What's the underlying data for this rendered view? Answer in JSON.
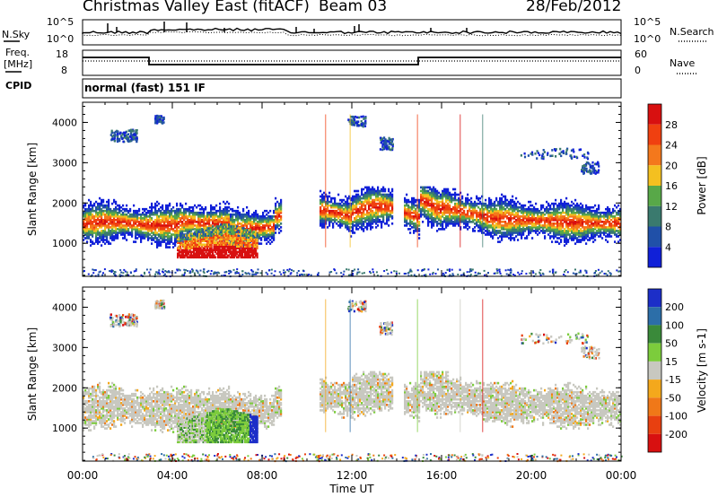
{
  "header": {
    "station": "Christmas Valley East (fitACF)",
    "beam": "Beam 03",
    "date": "28/Feb/2012"
  },
  "params": {
    "nsky_label": "N.Sky",
    "nsky_ticks": [
      "10^5",
      "10^0"
    ],
    "nsearch_label": "N.Search",
    "nsearch_ticks": [
      "10^5",
      "10^0"
    ],
    "freq_label": [
      "Freq.",
      "[MHz]"
    ],
    "freq_ticks": [
      "18",
      "8"
    ],
    "nave_label": "Nave",
    "nave_ticks": [
      "60",
      "0"
    ],
    "cpid_label": "CPID",
    "cpid_value": "normal (fast) 151 IF"
  },
  "chart_data": [
    {
      "type": "heatmap",
      "title": "",
      "xlabel": "Time UT",
      "ylabel": "Slant Range [km]",
      "x_ticks": [
        "00:00",
        "04:00",
        "08:00",
        "12:00",
        "16:00",
        "20:00",
        "00:00"
      ],
      "xlim_hours": [
        0,
        24
      ],
      "ylim_km": [
        180,
        4500
      ],
      "y_ticks": [
        1000,
        2000,
        3000,
        4000
      ],
      "colorbar": {
        "label": "Power [dB]",
        "ticks": [
          "28",
          "24",
          "20",
          "16",
          "12",
          "8",
          "4"
        ],
        "colors": [
          "#d81010",
          "#f04010",
          "#f4781c",
          "#f4c020",
          "#58a848",
          "#3a7a6e",
          "#2050a8",
          "#1020d8"
        ]
      },
      "features": [
        {
          "name": "main scatter band",
          "hours": [
            0,
            24
          ],
          "range_km": [
            1200,
            1900
          ],
          "peak_power_db": 28
        },
        {
          "name": "near-range enhancement",
          "hours": [
            4.2,
            7.5
          ],
          "range_km": [
            700,
            1500
          ],
          "peak_power_db": 28
        },
        {
          "name": "far-range patches",
          "hours": [
            19,
            23.5
          ],
          "range_km": [
            2700,
            3400
          ],
          "peak_power_db": 8
        }
      ]
    },
    {
      "type": "heatmap",
      "title": "",
      "xlabel": "Time UT",
      "ylabel": "Slant Range [km]",
      "x_ticks": [
        "00:00",
        "04:00",
        "08:00",
        "12:00",
        "16:00",
        "20:00",
        "00:00"
      ],
      "xlim_hours": [
        0,
        24
      ],
      "ylim_km": [
        180,
        4500
      ],
      "y_ticks": [
        1000,
        2000,
        3000,
        4000
      ],
      "colorbar": {
        "label": "Velocity [m s-1]",
        "ticks": [
          "200",
          "100",
          "50",
          "15",
          "-15",
          "-50",
          "-100",
          "-200"
        ],
        "colors": [
          "#1c2ec8",
          "#2c6ea8",
          "#3a8a3a",
          "#7ccc3c",
          "#c8c8c0",
          "#f4a81c",
          "#f07818",
          "#e84010",
          "#d81010"
        ]
      },
      "features": [
        {
          "name": "ground scatter band",
          "hours": [
            0,
            24
          ],
          "range_km": [
            1200,
            2000
          ],
          "velocity": "-15 to 15"
        },
        {
          "name": "near-range positive velocity patch",
          "hours": [
            4,
            8.5
          ],
          "range_km": [
            700,
            1500
          ],
          "velocity": "15 to 200"
        }
      ]
    }
  ]
}
